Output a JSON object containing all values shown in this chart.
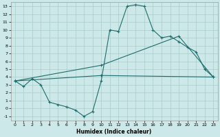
{
  "xlabel": "Humidex (Indice chaleur)",
  "bg_color": "#cce8e8",
  "grid_color": "#aacccc",
  "line_color": "#1f6b6b",
  "xlim": [
    -0.5,
    23.5
  ],
  "ylim": [
    -1.5,
    13.5
  ],
  "xticks": [
    0,
    1,
    2,
    3,
    4,
    5,
    6,
    7,
    8,
    9,
    10,
    11,
    12,
    13,
    14,
    15,
    16,
    17,
    18,
    19,
    20,
    21,
    22,
    23
  ],
  "yticks": [
    -1,
    0,
    1,
    2,
    3,
    4,
    5,
    6,
    7,
    8,
    9,
    10,
    11,
    12,
    13
  ],
  "line1_x": [
    0,
    1,
    2,
    3,
    4,
    5,
    6,
    7,
    8,
    9,
    10,
    11,
    12,
    13,
    14,
    15,
    16,
    17,
    18,
    19,
    20,
    21,
    22,
    23
  ],
  "line1_y": [
    3.5,
    2.8,
    3.8,
    3.0,
    0.8,
    0.5,
    0.2,
    -0.2,
    -1.0,
    -0.4,
    3.5,
    10.0,
    9.8,
    13.0,
    13.2,
    13.0,
    10.0,
    9.0,
    9.2,
    8.5,
    7.8,
    7.2,
    5.0,
    4.0
  ],
  "line2_x": [
    0,
    10,
    19,
    23
  ],
  "line2_y": [
    3.5,
    5.5,
    9.2,
    4.0
  ],
  "line3_x": [
    0,
    10,
    23
  ],
  "line3_y": [
    3.5,
    4.2,
    4.0
  ]
}
